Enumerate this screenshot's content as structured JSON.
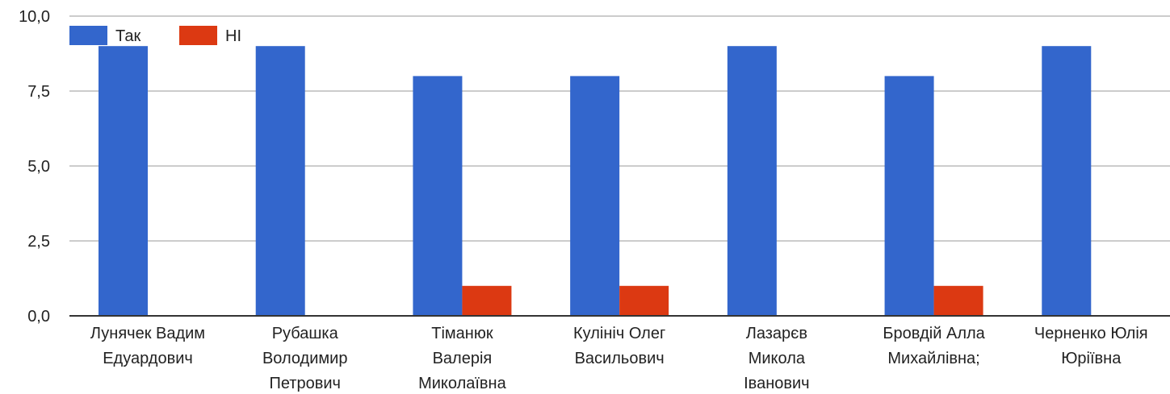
{
  "chart_data": {
    "type": "bar",
    "categories": [
      "Лунячек Вадим Едуардович",
      "Рубашка Володимир Петрович",
      "Тіманюк Валерія Миколаївна",
      "Кулініч Олег Васильович",
      "Лазарєв Микола Іванович",
      "Бровдій Алла Михайлівна;",
      "Черненко Юлія Юріївна"
    ],
    "category_lines": [
      [
        "Лунячек Вадим",
        "Едуардович"
      ],
      [
        "Рубашка",
        "Володимир",
        "Петрович"
      ],
      [
        "Тіманюк",
        "Валерія",
        "Миколаївна"
      ],
      [
        "Кулініч Олег",
        "Васильович"
      ],
      [
        "Лазарєв",
        "Микола",
        "Іванович"
      ],
      [
        "Бровдій Алла",
        "Михайлівна;"
      ],
      [
        "Черненко Юлія",
        "Юріївна"
      ]
    ],
    "series": [
      {
        "name": "Так",
        "color": "#3366cc",
        "values": [
          9,
          9,
          8,
          8,
          9,
          8,
          9
        ]
      },
      {
        "name": "НІ",
        "color": "#dc3912",
        "values": [
          0,
          0,
          1,
          1,
          0,
          1,
          0
        ]
      }
    ],
    "yticks": [
      "0,0",
      "2,5",
      "5,0",
      "7,5",
      "10,0"
    ],
    "ylim": [
      0,
      10
    ],
    "grid": true,
    "legend_position": "top-left"
  }
}
